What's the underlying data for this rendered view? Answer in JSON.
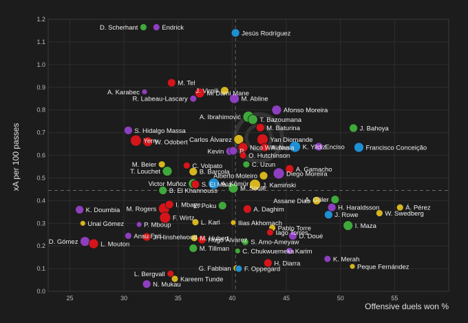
{
  "chart_data": {
    "type": "scatter",
    "title": "",
    "xlabel": "Offensive duels won %",
    "ylabel": "xA per 100 passes",
    "xlim": [
      23,
      60
    ],
    "ylim": [
      0,
      1.2
    ],
    "x_ticks": [
      25,
      30,
      35,
      40,
      45,
      50,
      55
    ],
    "y_ticks": [
      0,
      0.1,
      0.2,
      0.3,
      0.4,
      0.5,
      0.6,
      0.7,
      0.8,
      0.9,
      1.0,
      1.1,
      1.2
    ],
    "grid": true,
    "reference_lines": {
      "x": 40.3,
      "y": 0.445
    },
    "colors": {
      "purple": "#8e3fc0",
      "green": "#3fa83a",
      "red": "#d4151a",
      "yellow": "#d6b51f",
      "blue": "#1f8fd4",
      "background": "#1c1c1c"
    },
    "points": [
      {
        "name": "D. Scherhant",
        "x": 31.8,
        "y": 1.165,
        "color": "green",
        "size": 5,
        "label_side": "left"
      },
      {
        "name": "Endrick",
        "x": 33.0,
        "y": 1.165,
        "color": "purple",
        "size": 5,
        "label_side": "right"
      },
      {
        "name": "Jesús Rodríguez",
        "x": 40.3,
        "y": 1.14,
        "color": "blue",
        "size": 6,
        "label_side": "right"
      },
      {
        "name": "A. Karabec",
        "x": 31.9,
        "y": 0.88,
        "color": "purple",
        "size": 4,
        "label_side": "left"
      },
      {
        "name": "M. Tel",
        "x": 34.4,
        "y": 0.92,
        "color": "red",
        "size": 6,
        "label_side": "right"
      },
      {
        "name": "J. Virgili",
        "x": 39.3,
        "y": 0.885,
        "color": "yellow",
        "size": 6,
        "label_side": "left"
      },
      {
        "name": "R. Labeau-Lascary",
        "x": 36.4,
        "y": 0.85,
        "color": "purple",
        "size": 5,
        "label_side": "left"
      },
      {
        "name": "M. Dami Mane",
        "x": 37.0,
        "y": 0.875,
        "color": "red",
        "size": 7,
        "label_side": "right"
      },
      {
        "name": "M. Abline",
        "x": 40.2,
        "y": 0.85,
        "color": "purple",
        "size": 7,
        "label_side": "right"
      },
      {
        "name": "Afonso Moreira",
        "x": 44.1,
        "y": 0.8,
        "color": "purple",
        "size": 7,
        "label_side": "right"
      },
      {
        "name": "A. Ibrahimović",
        "x": 41.5,
        "y": 0.77,
        "color": "green",
        "size": 8,
        "label_side": "left"
      },
      {
        "name": "T. Bazoumana",
        "x": 41.9,
        "y": 0.758,
        "color": "green",
        "size": 7,
        "label_side": "right"
      },
      {
        "name": "J. Bahoya",
        "x": 51.2,
        "y": 0.72,
        "color": "green",
        "size": 6,
        "label_side": "right"
      },
      {
        "name": "S. Hidalgo Massa",
        "x": 30.4,
        "y": 0.71,
        "color": "purple",
        "size": 6,
        "label_side": "right"
      },
      {
        "name": "M. Baturina",
        "x": 42.6,
        "y": 0.722,
        "color": "red",
        "size": 6,
        "label_side": "right"
      },
      {
        "name": "Yan Diomande",
        "x": 42.8,
        "y": 0.67,
        "color": "red",
        "size": 8,
        "label_side": "right"
      },
      {
        "name": "Yerry",
        "x": 31.1,
        "y": 0.665,
        "color": "red",
        "size": 8,
        "label_side": "right"
      },
      {
        "name": "W. Odobert",
        "x": 32.2,
        "y": 0.66,
        "color": "red",
        "size": 7,
        "label_side": "right"
      },
      {
        "name": "Carlos Álvarez",
        "x": 40.6,
        "y": 0.67,
        "color": "yellow",
        "size": 7,
        "label_side": "left"
      },
      {
        "name": "Nico Williams",
        "x": 41.0,
        "y": 0.635,
        "color": "red",
        "size": 7,
        "label_side": "right"
      },
      {
        "name": "A. Nusa",
        "x": 43.0,
        "y": 0.635,
        "color": "red",
        "size": 6,
        "label_side": "right"
      },
      {
        "name": "K. Yildiz",
        "x": 45.8,
        "y": 0.638,
        "color": "blue",
        "size": 8,
        "label_side": "right"
      },
      {
        "name": "Enciso",
        "x": 48.0,
        "y": 0.638,
        "color": "purple",
        "size": 6,
        "label_side": "right"
      },
      {
        "name": "Francisco Conceição",
        "x": 51.7,
        "y": 0.635,
        "color": "blue",
        "size": 7,
        "label_side": "right"
      },
      {
        "name": "Kevin",
        "x": 39.8,
        "y": 0.618,
        "color": "purple",
        "size": 6,
        "label_side": "left"
      },
      {
        "name": "P.",
        "x": 40.1,
        "y": 0.62,
        "color": "purple",
        "size": 6,
        "label_side": "right"
      },
      {
        "name": "O. Hutchinson",
        "x": 41.0,
        "y": 0.6,
        "color": "red",
        "size": 5,
        "label_side": "right"
      },
      {
        "name": "M. Beier",
        "x": 33.5,
        "y": 0.56,
        "color": "yellow",
        "size": 5,
        "label_side": "left"
      },
      {
        "name": "C. Volpato",
        "x": 35.8,
        "y": 0.555,
        "color": "red",
        "size": 5,
        "label_side": "right"
      },
      {
        "name": "C. Uzun",
        "x": 41.3,
        "y": 0.56,
        "color": "green",
        "size": 5,
        "label_side": "right"
      },
      {
        "name": "T. Louchet",
        "x": 34.0,
        "y": 0.53,
        "color": "green",
        "size": 7,
        "label_side": "left"
      },
      {
        "name": "B. Barcola",
        "x": 36.4,
        "y": 0.528,
        "color": "yellow",
        "size": 6,
        "label_side": "right"
      },
      {
        "name": "Diego Moreira",
        "x": 44.3,
        "y": 0.52,
        "color": "purple",
        "size": 8,
        "label_side": "right"
      },
      {
        "name": "A. Gamacho",
        "x": 45.3,
        "y": 0.54,
        "color": "red",
        "size": 6,
        "label_side": "right"
      },
      {
        "name": "Alberto Moleiro",
        "x": 42.9,
        "y": 0.51,
        "color": "yellow",
        "size": 6,
        "label_side": "left"
      },
      {
        "name": "Victor Muñoz",
        "x": 36.4,
        "y": 0.475,
        "color": "green",
        "size": 7,
        "label_side": "left"
      },
      {
        "name": "S. El Mala",
        "x": 36.6,
        "y": 0.472,
        "color": "red",
        "size": 6,
        "label_side": "right"
      },
      {
        "name": "A. Kömür",
        "x": 38.3,
        "y": 0.475,
        "color": "blue",
        "size": 8,
        "label_side": "right"
      },
      {
        "name": "M. Soulé",
        "x": 40.1,
        "y": 0.455,
        "color": "green",
        "size": 7,
        "label_side": "right"
      },
      {
        "name": "J. Kamiński",
        "x": 42.1,
        "y": 0.47,
        "color": "yellow",
        "size": 8,
        "label_side": "right"
      },
      {
        "name": "B. El Khannouss",
        "x": 33.6,
        "y": 0.445,
        "color": "green",
        "size": 6,
        "label_side": "right"
      },
      {
        "name": "A. Güler",
        "x": 49.5,
        "y": 0.405,
        "color": "green",
        "size": 6,
        "label_side": "left"
      },
      {
        "name": "Assane Diao",
        "x": 47.8,
        "y": 0.4,
        "color": "yellow",
        "size": 6,
        "label_side": "left"
      },
      {
        "name": "E. Poku",
        "x": 39.1,
        "y": 0.378,
        "color": "green",
        "size": 6,
        "label_side": "left"
      },
      {
        "name": "H. Haraldsson",
        "x": 49.2,
        "y": 0.37,
        "color": "purple",
        "size": 6,
        "label_side": "right"
      },
      {
        "name": "Á. Pérez",
        "x": 55.5,
        "y": 0.37,
        "color": "yellow",
        "size": 5,
        "label_side": "right"
      },
      {
        "name": "K. Doumbia",
        "x": 25.9,
        "y": 0.36,
        "color": "purple",
        "size": 6,
        "label_side": "right"
      },
      {
        "name": "M. Rogers",
        "x": 33.7,
        "y": 0.365,
        "color": "red",
        "size": 8,
        "label_side": "left"
      },
      {
        "name": "I. Mbaye",
        "x": 34.2,
        "y": 0.383,
        "color": "red",
        "size": 6,
        "label_side": "right"
      },
      {
        "name": "A. Daghim",
        "x": 41.4,
        "y": 0.363,
        "color": "red",
        "size": 6,
        "label_side": "right"
      },
      {
        "name": "W. Swedberg",
        "x": 53.6,
        "y": 0.345,
        "color": "yellow",
        "size": 5,
        "label_side": "right"
      },
      {
        "name": "J. Rowe",
        "x": 48.9,
        "y": 0.338,
        "color": "blue",
        "size": 6,
        "label_side": "right"
      },
      {
        "name": "F. Wirtz",
        "x": 33.8,
        "y": 0.325,
        "color": "red",
        "size": 8,
        "label_side": "right"
      },
      {
        "name": "L. Karl",
        "x": 36.6,
        "y": 0.305,
        "color": "yellow",
        "size": 5,
        "label_side": "right"
      },
      {
        "name": "Unai Gómez",
        "x": 26.2,
        "y": 0.3,
        "color": "yellow",
        "size": 4,
        "label_side": "right"
      },
      {
        "name": "P. Mboup",
        "x": 31.4,
        "y": 0.295,
        "color": "purple",
        "size": 4,
        "label_side": "right"
      },
      {
        "name": "Ilias Akhomach",
        "x": 40.1,
        "y": 0.303,
        "color": "yellow",
        "size": 4,
        "label_side": "right"
      },
      {
        "name": "Pablo Torre",
        "x": 43.7,
        "y": 0.28,
        "color": "yellow",
        "size": 5,
        "label_side": "right"
      },
      {
        "name": "Iago Torres",
        "x": 43.5,
        "y": 0.26,
        "color": "red",
        "size": 5,
        "label_side": "right"
      },
      {
        "name": "I. Maza",
        "x": 50.7,
        "y": 0.29,
        "color": "green",
        "size": 7,
        "label_side": "right"
      },
      {
        "name": "Ansu Fati",
        "x": 30.4,
        "y": 0.245,
        "color": "purple",
        "size": 5,
        "label_side": "right"
      },
      {
        "name": "J. Hinshelwood",
        "x": 32.1,
        "y": 0.24,
        "color": "red",
        "size": 6,
        "label_side": "right"
      },
      {
        "name": "M. Hubert",
        "x": 36.5,
        "y": 0.235,
        "color": "yellow",
        "size": 5,
        "label_side": "right"
      },
      {
        "name": "Hugo Álvarez",
        "x": 37.2,
        "y": 0.228,
        "color": "red",
        "size": 6,
        "label_side": "right"
      },
      {
        "name": "D. Doué",
        "x": 45.6,
        "y": 0.245,
        "color": "purple",
        "size": 6,
        "label_side": "right"
      },
      {
        "name": "S. Amo-Ameyaw",
        "x": 41.2,
        "y": 0.218,
        "color": "green",
        "size": 5,
        "label_side": "right"
      },
      {
        "name": "D. Gómez",
        "x": 26.4,
        "y": 0.22,
        "color": "purple",
        "size": 7,
        "label_side": "left"
      },
      {
        "name": "L. Mouton",
        "x": 27.2,
        "y": 0.21,
        "color": "red",
        "size": 7,
        "label_side": "right"
      },
      {
        "name": "M. Tillman",
        "x": 36.4,
        "y": 0.19,
        "color": "green",
        "size": 6,
        "label_side": "right"
      },
      {
        "name": "C. Chukwuemeka",
        "x": 40.5,
        "y": 0.178,
        "color": "green",
        "size": 4,
        "label_side": "right"
      },
      {
        "name": "Karim",
        "x": 45.3,
        "y": 0.178,
        "color": "purple",
        "size": 5,
        "label_side": "right"
      },
      {
        "name": "K. Merah",
        "x": 48.8,
        "y": 0.143,
        "color": "purple",
        "size": 5,
        "label_side": "right"
      },
      {
        "name": "H. Diarra",
        "x": 43.3,
        "y": 0.125,
        "color": "red",
        "size": 6,
        "label_side": "right"
      },
      {
        "name": "Peque Fernández",
        "x": 51.1,
        "y": 0.11,
        "color": "yellow",
        "size": 4,
        "label_side": "right"
      },
      {
        "name": "G. Fabbian",
        "x": 40.4,
        "y": 0.102,
        "color": "yellow",
        "size": 5,
        "label_side": "left"
      },
      {
        "name": "F. Oppegard",
        "x": 40.6,
        "y": 0.1,
        "color": "blue",
        "size": 5,
        "label_side": "right"
      },
      {
        "name": "L. Bergvall",
        "x": 34.3,
        "y": 0.078,
        "color": "red",
        "size": 5,
        "label_side": "left"
      },
      {
        "name": "Kareem Tunde",
        "x": 34.7,
        "y": 0.055,
        "color": "yellow",
        "size": 5,
        "label_side": "right"
      },
      {
        "name": "N. Mukau",
        "x": 32.1,
        "y": 0.032,
        "color": "purple",
        "size": 6,
        "label_side": "right"
      }
    ]
  }
}
